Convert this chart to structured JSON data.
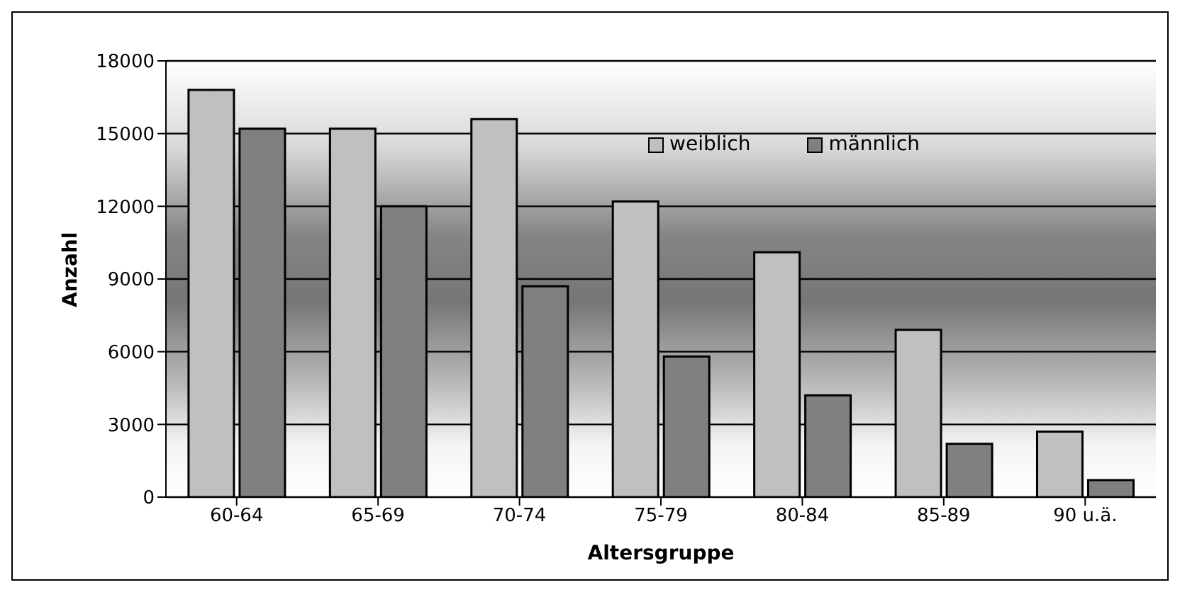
{
  "chart_data": {
    "type": "bar",
    "xlabel": "Altersgruppe",
    "ylabel": "Anzahl",
    "categories": [
      "60-64",
      "65-69",
      "70-74",
      "75-79",
      "80-84",
      "85-89",
      "90 u.ä."
    ],
    "series": [
      {
        "name": "weiblich",
        "color": "#c0c0c0",
        "values": [
          16800,
          15200,
          15600,
          12200,
          10100,
          6900,
          2700
        ]
      },
      {
        "name": "männlich",
        "color": "#808080",
        "values": [
          15200,
          12000,
          8700,
          5800,
          4200,
          2200,
          700
        ]
      }
    ],
    "ylim": [
      0,
      18000
    ],
    "yticks": [
      0,
      3000,
      6000,
      9000,
      12000,
      15000,
      18000
    ],
    "grid": "y",
    "legend": "top right"
  }
}
